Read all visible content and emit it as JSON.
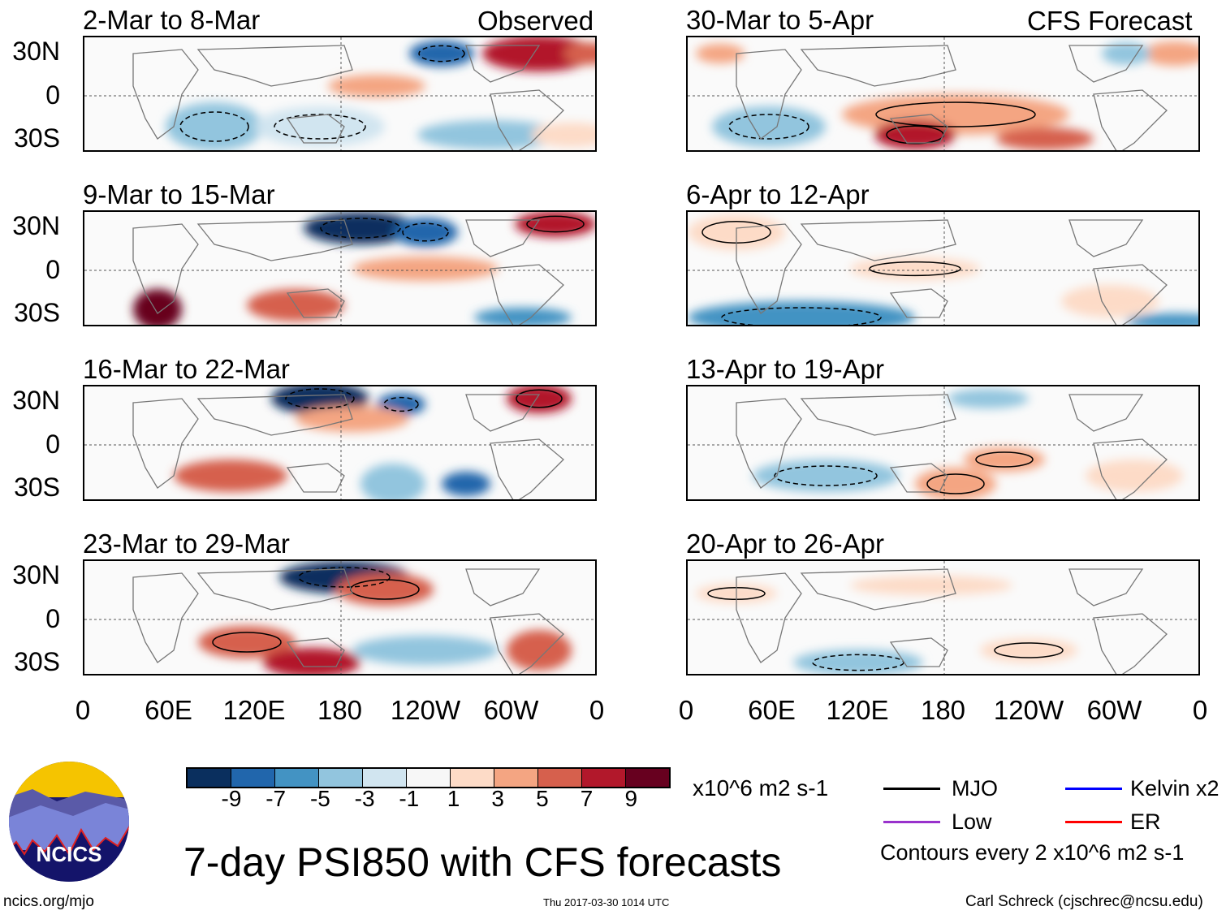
{
  "header": {
    "observed_label": "Observed",
    "forecast_label": "CFS Forecast"
  },
  "panels": {
    "left": [
      {
        "title": "2-Mar to 8-Mar"
      },
      {
        "title": "9-Mar to 15-Mar"
      },
      {
        "title": "16-Mar to 22-Mar"
      },
      {
        "title": "23-Mar to 29-Mar"
      }
    ],
    "right": [
      {
        "title": "30-Mar to 5-Apr"
      },
      {
        "title": "6-Apr to 12-Apr"
      },
      {
        "title": "13-Apr to 19-Apr"
      },
      {
        "title": "20-Apr to 26-Apr"
      }
    ]
  },
  "axes": {
    "y_ticks": [
      "30N",
      "0",
      "30S"
    ],
    "x_ticks": [
      "0",
      "60E",
      "120E",
      "180",
      "120W",
      "60W",
      "0"
    ]
  },
  "colorbar": {
    "colors": [
      "#0a2f5e",
      "#2166ac",
      "#4393c3",
      "#92c5de",
      "#d1e5f0",
      "#f7f7f7",
      "#fddbc7",
      "#f4a582",
      "#d6604d",
      "#b2182b",
      "#67001f"
    ],
    "labels": [
      "-9",
      "-7",
      "-5",
      "-3",
      "-1",
      "1",
      "3",
      "5",
      "7",
      "9"
    ],
    "units": "x10^6 m2 s-1"
  },
  "legend": {
    "items": [
      {
        "label": "MJO",
        "color": "#000000"
      },
      {
        "label": "Kelvin x2",
        "color": "#0000ff"
      },
      {
        "label": "Low",
        "color": "#9932cc"
      },
      {
        "label": "ER",
        "color": "#ff0000"
      }
    ],
    "contours_note": "Contours every 2 x10^6 m2 s-1"
  },
  "logo": {
    "text": "NCICS"
  },
  "footer": {
    "title": "7-day PSI850 with CFS forecasts",
    "url": "ncics.org/mjo",
    "timestamp": "Thu 2017-03-30 1014 UTC",
    "author": "Carl Schreck (cjschrec@ncsu.edu)"
  }
}
